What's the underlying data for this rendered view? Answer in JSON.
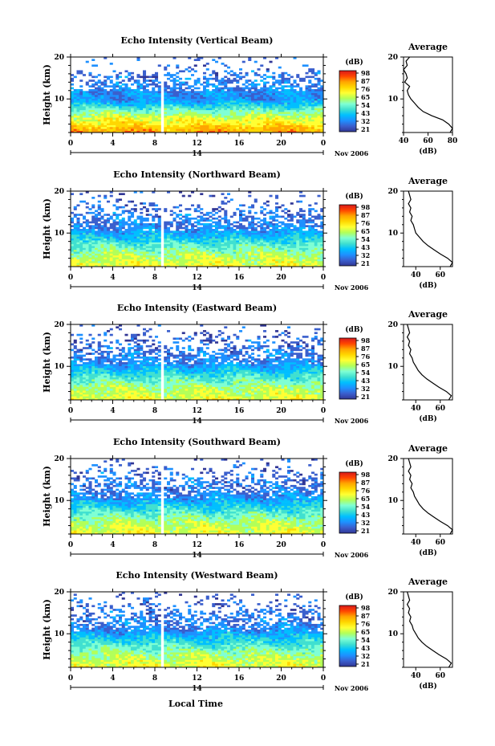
{
  "chart_data": [
    {
      "type": "heatmap",
      "title": "Echo Intensity (Vertical Beam)",
      "ylabel": "Height (km)",
      "xticks": [
        "0",
        "4",
        "8",
        "12",
        "16",
        "20",
        "0"
      ],
      "yticks": [
        "10",
        "20"
      ],
      "xlim": [
        0,
        24
      ],
      "ylim": [
        2,
        20
      ],
      "date_marker": "14",
      "date_label": "Nov 2006",
      "colorbar": {
        "label": "(dB)",
        "ticks": [
          "98",
          "87",
          "76",
          "65",
          "54",
          "43",
          "32",
          "21"
        ]
      },
      "profile": {
        "title": "Average",
        "xlabel": "(dB)",
        "xticks": [
          "40",
          "60",
          "80"
        ],
        "xlim": [
          40,
          80
        ],
        "yticks": [
          "10",
          "20"
        ],
        "height": [
          2,
          3,
          4,
          5,
          6,
          7,
          8,
          9,
          10,
          11,
          12,
          13,
          14,
          15,
          16,
          17,
          18,
          19,
          20
        ],
        "db": [
          78,
          80,
          77,
          72,
          63,
          56,
          52,
          49,
          46,
          44,
          43,
          45,
          41,
          43,
          42,
          40,
          43,
          42,
          45
        ]
      }
    },
    {
      "type": "heatmap",
      "title": "Echo Intensity (Northward Beam)",
      "ylabel": "Height (km)",
      "xticks": [
        "0",
        "4",
        "8",
        "12",
        "16",
        "20",
        "0"
      ],
      "yticks": [
        "10",
        "20"
      ],
      "xlim": [
        0,
        24
      ],
      "ylim": [
        2,
        20
      ],
      "date_marker": "14",
      "date_label": "Nov 2006",
      "colorbar": {
        "label": "(dB)",
        "ticks": [
          "98",
          "87",
          "76",
          "65",
          "54",
          "43",
          "32",
          "21"
        ]
      },
      "profile": {
        "title": "Average",
        "xlabel": "(dB)",
        "xticks": [
          "40",
          "60"
        ],
        "xlim": [
          30,
          70
        ],
        "yticks": [
          "10",
          "20"
        ],
        "height": [
          2,
          3,
          4,
          5,
          6,
          7,
          8,
          9,
          10,
          11,
          12,
          13,
          14,
          15,
          16,
          17,
          18,
          19,
          20
        ],
        "db": [
          68,
          70,
          66,
          60,
          55,
          50,
          46,
          43,
          40,
          39,
          38,
          36,
          37,
          35,
          36,
          34,
          36,
          35,
          34
        ]
      }
    },
    {
      "type": "heatmap",
      "title": "Echo Intensity (Eastward Beam)",
      "ylabel": "Height (km)",
      "xticks": [
        "0",
        "4",
        "8",
        "12",
        "16",
        "20",
        "0"
      ],
      "yticks": [
        "10",
        "20"
      ],
      "xlim": [
        0,
        24
      ],
      "ylim": [
        2,
        20
      ],
      "date_marker": "14",
      "date_label": "Nov 2006",
      "colorbar": {
        "label": "(dB)",
        "ticks": [
          "98",
          "87",
          "76",
          "65",
          "54",
          "43",
          "32",
          "21"
        ]
      },
      "profile": {
        "title": "Average",
        "xlabel": "(dB)",
        "xticks": [
          "40",
          "60"
        ],
        "xlim": [
          30,
          70
        ],
        "yticks": [
          "10",
          "20"
        ],
        "height": [
          2,
          3,
          4,
          5,
          6,
          7,
          8,
          9,
          10,
          11,
          12,
          13,
          14,
          15,
          16,
          17,
          18,
          19,
          20
        ],
        "db": [
          67,
          69,
          65,
          59,
          54,
          49,
          45,
          42,
          40,
          38,
          37,
          35,
          36,
          34,
          35,
          33,
          35,
          34,
          33
        ]
      }
    },
    {
      "type": "heatmap",
      "title": "Echo Intensity (Southward Beam)",
      "ylabel": "Height (km)",
      "xticks": [
        "0",
        "4",
        "8",
        "12",
        "16",
        "20",
        "0"
      ],
      "yticks": [
        "10",
        "20"
      ],
      "xlim": [
        0,
        24
      ],
      "ylim": [
        2,
        20
      ],
      "date_marker": "14",
      "date_label": "Nov 2006",
      "colorbar": {
        "label": "(dB)",
        "ticks": [
          "98",
          "87",
          "76",
          "65",
          "54",
          "43",
          "32",
          "21"
        ]
      },
      "profile": {
        "title": "Average",
        "xlabel": "(dB)",
        "xticks": [
          "40",
          "60"
        ],
        "xlim": [
          30,
          70
        ],
        "yticks": [
          "10",
          "20"
        ],
        "height": [
          2,
          3,
          4,
          5,
          6,
          7,
          8,
          9,
          10,
          11,
          12,
          13,
          14,
          15,
          16,
          17,
          18,
          19,
          20
        ],
        "db": [
          68,
          70,
          66,
          60,
          55,
          50,
          46,
          43,
          41,
          39,
          38,
          36,
          37,
          35,
          36,
          34,
          36,
          35,
          34
        ]
      }
    },
    {
      "type": "heatmap",
      "title": "Echo Intensity (Westward Beam)",
      "ylabel": "Height (km)",
      "xticks": [
        "0",
        "4",
        "8",
        "12",
        "16",
        "20",
        "0"
      ],
      "yticks": [
        "10",
        "20"
      ],
      "xlim": [
        0,
        24
      ],
      "ylim": [
        2,
        20
      ],
      "date_marker": "14",
      "date_label": "Nov 2006",
      "colorbar": {
        "label": "(dB)",
        "ticks": [
          "98",
          "87",
          "76",
          "65",
          "54",
          "43",
          "32",
          "21"
        ]
      },
      "profile": {
        "title": "Average",
        "xlabel": "(dB)",
        "xticks": [
          "40",
          "60"
        ],
        "xlim": [
          30,
          70
        ],
        "yticks": [
          "10",
          "20"
        ],
        "height": [
          2,
          3,
          4,
          5,
          6,
          7,
          8,
          9,
          10,
          11,
          12,
          13,
          14,
          15,
          16,
          17,
          18,
          19,
          20
        ],
        "db": [
          67,
          69,
          65,
          59,
          54,
          49,
          45,
          42,
          40,
          38,
          37,
          35,
          36,
          34,
          35,
          33,
          35,
          34,
          33
        ]
      }
    }
  ],
  "xlabel": "Local Time",
  "colormap": [
    "#313695",
    "#3a5fcd",
    "#1e90ff",
    "#00bfff",
    "#40e0d0",
    "#7fffd4",
    "#b2ff59",
    "#ffff33",
    "#ffd700",
    "#ffa500",
    "#ff4500",
    "#d7191c"
  ]
}
